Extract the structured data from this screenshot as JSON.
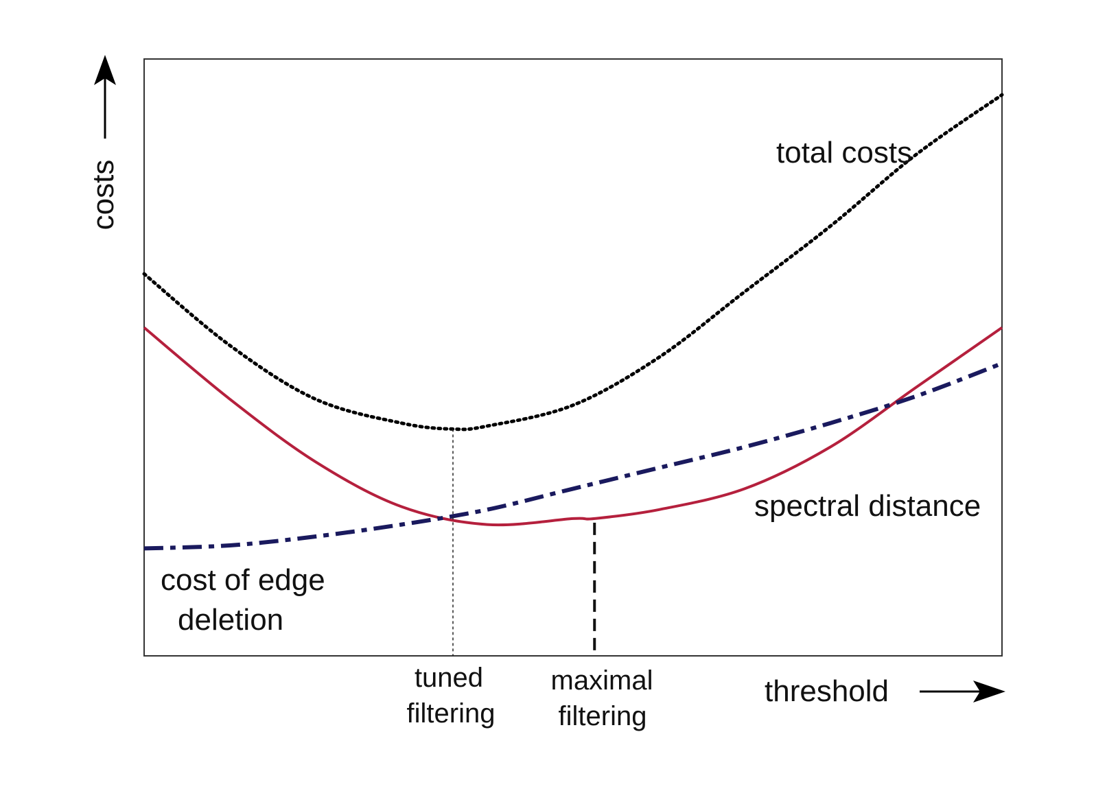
{
  "chart_data": {
    "type": "line",
    "xlabel": "threshold",
    "ylabel": "costs",
    "xlim": [
      0,
      100
    ],
    "ylim": [
      0,
      100
    ],
    "ticks_shown": false,
    "grid": false,
    "legend": "none",
    "series": [
      {
        "name": "total costs",
        "style": "dotted",
        "color": "#000000",
        "x": [
          0,
          10,
          20,
          30,
          36,
          40,
          50,
          60,
          70,
          80,
          90,
          100
        ],
        "y": [
          64,
          52,
          43,
          39,
          38,
          38.5,
          42,
          50,
          61,
          72,
          84,
          94
        ]
      },
      {
        "name": "spectral distance",
        "style": "solid",
        "color": "#b5203d",
        "x": [
          0,
          10,
          20,
          30,
          40,
          50,
          52.5,
          60,
          70,
          80,
          90,
          100
        ],
        "y": [
          55,
          43,
          32.5,
          25,
          22,
          23,
          23,
          24.5,
          28,
          35,
          45,
          55
        ]
      },
      {
        "name": "cost of edge deletion",
        "style": "dash-dot",
        "color": "#1a1a5e",
        "x": [
          0,
          10,
          20,
          30,
          40,
          50,
          60,
          70,
          80,
          90,
          100
        ],
        "y": [
          18,
          18.5,
          20,
          22,
          24.5,
          28,
          31.5,
          35,
          39,
          43.5,
          49
        ]
      }
    ],
    "markers": [
      {
        "label": [
          "tuned",
          "filtering"
        ],
        "x": 36,
        "style": "dotted"
      },
      {
        "label": [
          "maximal",
          "filtering"
        ],
        "x": 52.5,
        "style": "dashed"
      }
    ],
    "series_labels": {
      "total": [
        "total costs"
      ],
      "spectral": [
        "spectral distance"
      ],
      "edge": [
        "cost of edge",
        "deletion"
      ]
    }
  }
}
